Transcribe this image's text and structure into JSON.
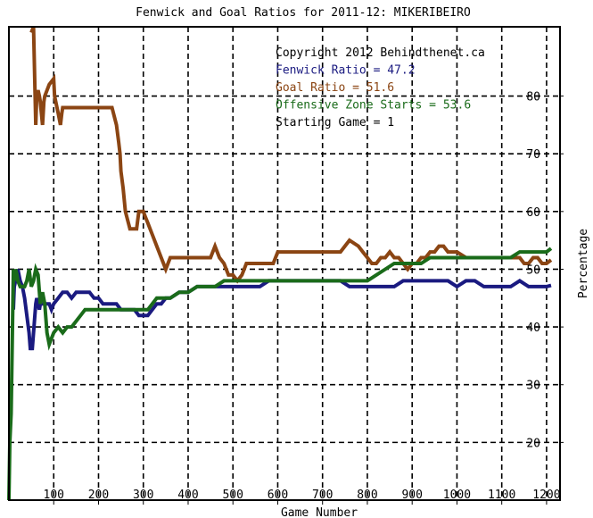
{
  "chart_data": {
    "type": "line",
    "title": "Fenwick and Goal Ratios for 2011-12: MIKERIBEIRO",
    "xlabel": "Game Number",
    "ylabel": "Percentage",
    "xlim": [
      0,
      1230
    ],
    "ylim": [
      10,
      92
    ],
    "xticks": [
      100,
      200,
      300,
      400,
      500,
      600,
      700,
      800,
      900,
      1000,
      1100,
      1200
    ],
    "xtick_labels": [
      "100",
      "200",
      "300",
      "400",
      "500",
      "600",
      "700",
      "800",
      "900",
      "1000",
      "1100",
      "1200"
    ],
    "yticks": [
      20,
      30,
      40,
      50,
      60,
      70,
      80
    ],
    "ytick_labels": [
      "20",
      "30",
      "40",
      "50",
      "60",
      "70",
      "80"
    ],
    "grid": true,
    "annotations": [
      {
        "text": "Copyright 2012 Behindthenet.ca",
        "color": "#000000"
      },
      {
        "text": "Fenwick Ratio = 47.2",
        "color": "#1a1a80"
      },
      {
        "text": "Goal Ratio = 51.6",
        "color": "#8b4513"
      },
      {
        "text": "Offensive Zone Starts = 53.6",
        "color": "#1a6b1a"
      },
      {
        "text": "Starting Game = 1",
        "color": "#000000"
      }
    ],
    "series": [
      {
        "color": "#8b4513",
        "x": [
          50,
          55,
          60,
          62,
          65,
          68,
          70,
          75,
          78,
          80,
          90,
          100,
          102,
          110,
          115,
          118,
          120,
          125,
          130,
          140,
          150,
          160,
          170,
          180,
          190,
          200,
          220,
          230,
          240,
          245,
          248,
          250,
          255,
          260,
          270,
          280,
          285,
          290,
          300,
          305,
          310,
          320,
          330,
          340,
          350,
          360,
          380,
          400,
          420,
          440,
          450,
          460,
          470,
          480,
          490,
          500,
          510,
          520,
          530,
          540,
          550,
          560,
          570,
          580,
          590,
          600,
          610,
          620,
          650,
          680,
          700,
          720,
          740,
          750,
          760,
          780,
          790,
          800,
          810,
          820,
          830,
          840,
          850,
          860,
          870,
          880,
          890,
          900,
          910,
          920,
          930,
          940,
          950,
          960,
          970,
          980,
          1000,
          1020,
          1040,
          1060,
          1080,
          1100,
          1120,
          1140,
          1150,
          1160,
          1170,
          1180,
          1190,
          1200,
          1210
        ],
        "y": [
          91,
          92,
          75,
          80,
          81,
          80,
          79,
          75,
          79,
          80,
          82,
          83,
          80,
          77,
          75,
          77,
          78,
          78,
          78,
          78,
          78,
          78,
          78,
          78,
          78,
          78,
          78,
          78,
          75,
          72,
          70,
          67,
          64,
          60,
          57,
          57,
          57,
          60,
          60,
          59,
          58,
          56,
          54,
          52,
          50,
          52,
          52,
          52,
          52,
          52,
          52,
          54,
          52,
          51,
          49,
          49,
          48,
          49,
          51,
          51,
          51,
          51,
          51,
          51,
          51,
          53,
          53,
          53,
          53,
          53,
          53,
          53,
          53,
          54,
          55,
          54,
          53,
          52,
          51,
          51,
          52,
          52,
          53,
          52,
          52,
          51,
          50,
          51,
          51,
          52,
          52,
          53,
          53,
          54,
          54,
          53,
          53,
          52,
          52,
          52,
          52,
          52,
          52,
          52,
          51,
          51,
          52,
          52,
          51,
          51,
          51.6
        ]
      },
      {
        "color": "#1a1a80",
        "x": [
          10,
          12,
          15,
          18,
          20,
          25,
          30,
          35,
          40,
          45,
          48,
          50,
          52,
          55,
          58,
          60,
          62,
          65,
          68,
          70,
          75,
          80,
          85,
          90,
          95,
          100,
          110,
          120,
          130,
          140,
          150,
          160,
          170,
          180,
          190,
          200,
          210,
          220,
          230,
          240,
          250,
          260,
          270,
          280,
          290,
          300,
          310,
          320,
          330,
          340,
          350,
          360,
          380,
          400,
          420,
          440,
          460,
          480,
          500,
          520,
          540,
          560,
          580,
          600,
          620,
          640,
          660,
          680,
          700,
          720,
          740,
          760,
          780,
          800,
          820,
          840,
          860,
          880,
          900,
          920,
          940,
          960,
          980,
          1000,
          1020,
          1040,
          1060,
          1080,
          1100,
          1120,
          1140,
          1160,
          1180,
          1200,
          1210
        ],
        "y": [
          43,
          47,
          48,
          49,
          50,
          48,
          47,
          45,
          42,
          39,
          36,
          37,
          36,
          39,
          42,
          44,
          45,
          44,
          43,
          44,
          44,
          44,
          44,
          44,
          43,
          44,
          45,
          46,
          46,
          45,
          46,
          46,
          46,
          46,
          45,
          45,
          44,
          44,
          44,
          44,
          43,
          43,
          43,
          43,
          42,
          42,
          42,
          43,
          44,
          44,
          45,
          45,
          46,
          46,
          47,
          47,
          47,
          47,
          47,
          47,
          47,
          47,
          48,
          48,
          48,
          48,
          48,
          48,
          48,
          48,
          48,
          47,
          47,
          47,
          47,
          47,
          47,
          48,
          48,
          48,
          48,
          48,
          48,
          47,
          48,
          48,
          47,
          47,
          47,
          47,
          48,
          47,
          47,
          47,
          47.2
        ]
      },
      {
        "color": "#1a6b1a",
        "x": [
          0,
          2,
          5,
          8,
          10,
          12,
          15,
          18,
          20,
          25,
          30,
          35,
          40,
          45,
          50,
          55,
          60,
          65,
          70,
          75,
          80,
          85,
          90,
          95,
          100,
          110,
          120,
          130,
          140,
          150,
          160,
          170,
          180,
          190,
          200,
          210,
          220,
          230,
          240,
          250,
          260,
          270,
          280,
          290,
          300,
          310,
          320,
          330,
          340,
          350,
          360,
          380,
          400,
          420,
          440,
          460,
          480,
          500,
          520,
          540,
          560,
          580,
          600,
          620,
          640,
          660,
          680,
          700,
          720,
          740,
          760,
          780,
          800,
          820,
          840,
          860,
          880,
          900,
          920,
          940,
          960,
          980,
          1000,
          1020,
          1040,
          1060,
          1080,
          1100,
          1120,
          1140,
          1160,
          1180,
          1200,
          1210
        ],
        "y": [
          10,
          20,
          25,
          40,
          50,
          48,
          50,
          49,
          48,
          47,
          47,
          47,
          48,
          50,
          47,
          48,
          50,
          49,
          44,
          46,
          44,
          39,
          37,
          38,
          39,
          40,
          39,
          40,
          40,
          41,
          42,
          43,
          43,
          43,
          43,
          43,
          43,
          43,
          43,
          43,
          43,
          43,
          43,
          43,
          43,
          43,
          44,
          45,
          45,
          45,
          45,
          46,
          46,
          47,
          47,
          47,
          48,
          48,
          48,
          48,
          48,
          48,
          48,
          48,
          48,
          48,
          48,
          48,
          48,
          48,
          48,
          48,
          48,
          49,
          50,
          51,
          51,
          51,
          51,
          52,
          52,
          52,
          52,
          52,
          52,
          52,
          52,
          52,
          52,
          53,
          53,
          53,
          53,
          53.6
        ]
      }
    ]
  }
}
